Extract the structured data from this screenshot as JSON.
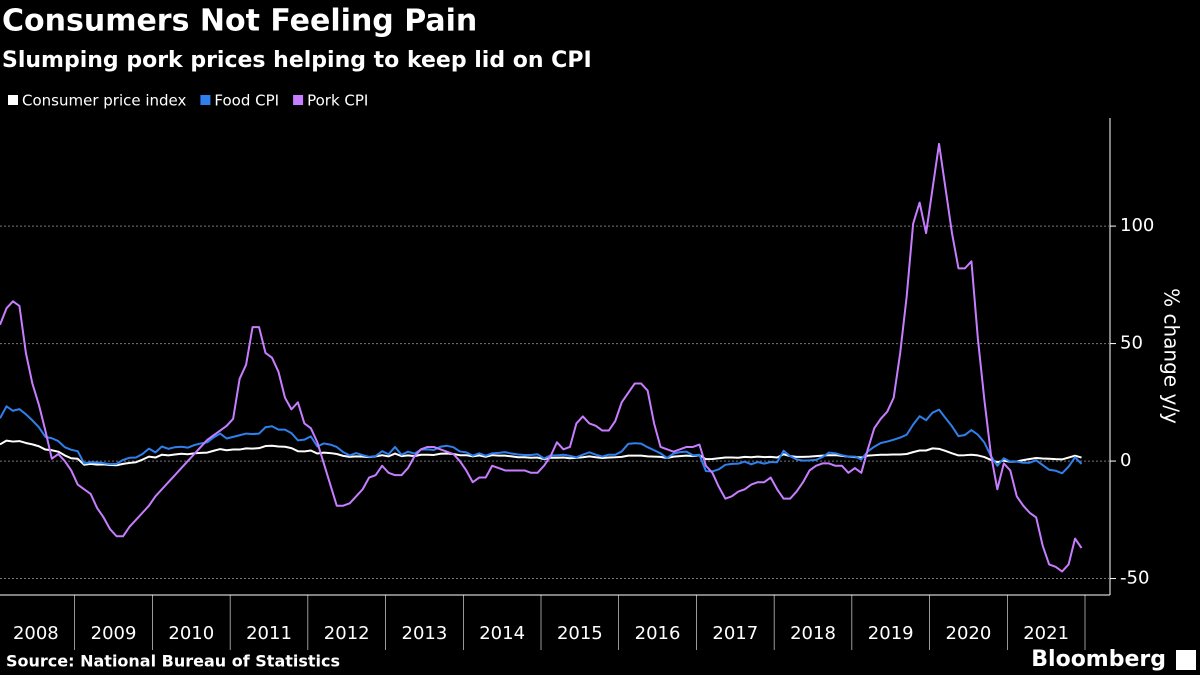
{
  "chart_data": {
    "type": "line",
    "title": "Consumers Not Feeling Pain",
    "subtitle": "Slumping pork prices helping to keep lid on CPI",
    "y_label": "% change y/y",
    "source": "Source: National Bureau of Statistics",
    "brand": "Bloomberg",
    "categories": [
      "2008",
      null,
      null,
      null,
      null,
      null,
      null,
      null,
      null,
      null,
      null,
      null,
      "2009",
      null,
      null,
      null,
      null,
      null,
      null,
      null,
      null,
      null,
      null,
      null,
      "2010",
      null,
      null,
      null,
      null,
      null,
      null,
      null,
      null,
      null,
      null,
      null,
      "2011",
      null,
      null,
      null,
      null,
      null,
      null,
      null,
      null,
      null,
      null,
      null,
      "2012",
      null,
      null,
      null,
      null,
      null,
      null,
      null,
      null,
      null,
      null,
      null,
      "2013",
      null,
      null,
      null,
      null,
      null,
      null,
      null,
      null,
      null,
      null,
      null,
      "2014",
      null,
      null,
      null,
      null,
      null,
      null,
      null,
      null,
      null,
      null,
      null,
      "2015",
      null,
      null,
      null,
      null,
      null,
      null,
      null,
      null,
      null,
      null,
      null,
      "2016",
      null,
      null,
      null,
      null,
      null,
      null,
      null,
      null,
      null,
      null,
      null,
      "2017",
      null,
      null,
      null,
      null,
      null,
      null,
      null,
      null,
      null,
      null,
      null,
      "2018",
      null,
      null,
      null,
      null,
      null,
      null,
      null,
      null,
      null,
      null,
      null,
      "2019",
      null,
      null,
      null,
      null,
      null,
      null,
      null,
      null,
      null,
      null,
      null,
      "2020",
      null,
      null,
      null,
      null,
      null,
      null,
      null,
      null,
      null,
      null,
      null,
      "2021",
      null,
      null,
      null,
      null,
      null,
      null,
      null,
      null,
      null,
      null,
      null
    ],
    "series": [
      {
        "name": "Consumer price index",
        "color": "#ffffff",
        "values": [
          7.1,
          8.7,
          8.3,
          8.5,
          7.7,
          7.1,
          6.3,
          4.9,
          4.6,
          4.0,
          2.4,
          1.2,
          1.0,
          -1.6,
          -1.2,
          -1.5,
          -1.4,
          -1.7,
          -1.8,
          -1.2,
          -0.8,
          -0.5,
          0.6,
          1.9,
          1.5,
          2.7,
          2.4,
          2.8,
          3.1,
          2.9,
          3.3,
          3.5,
          3.6,
          4.4,
          5.1,
          4.6,
          4.9,
          4.9,
          5.4,
          5.3,
          5.5,
          6.4,
          6.5,
          6.2,
          6.1,
          5.5,
          4.2,
          4.1,
          4.5,
          3.2,
          3.6,
          3.4,
          3.0,
          2.2,
          1.8,
          2.0,
          1.9,
          1.7,
          2.0,
          2.5,
          2.0,
          3.2,
          2.1,
          2.4,
          2.1,
          2.7,
          2.7,
          2.6,
          3.1,
          3.2,
          3.0,
          2.5,
          2.5,
          2.0,
          2.4,
          1.8,
          2.5,
          2.3,
          2.3,
          2.0,
          1.6,
          1.6,
          1.4,
          1.5,
          0.8,
          1.4,
          1.4,
          1.5,
          1.2,
          1.4,
          1.6,
          2.0,
          1.6,
          1.3,
          1.5,
          1.6,
          1.8,
          2.3,
          2.3,
          2.3,
          2.0,
          1.9,
          1.8,
          1.3,
          1.9,
          2.1,
          2.3,
          2.1,
          2.5,
          0.8,
          0.9,
          1.2,
          1.5,
          1.5,
          1.4,
          1.8,
          1.6,
          1.9,
          1.7,
          1.8,
          1.5,
          2.9,
          2.1,
          1.8,
          1.8,
          1.9,
          2.1,
          2.3,
          2.5,
          2.5,
          2.2,
          1.9,
          1.7,
          1.5,
          2.3,
          2.5,
          2.7,
          2.7,
          2.8,
          2.8,
          3.0,
          3.8,
          4.5,
          4.5,
          5.4,
          5.2,
          4.3,
          3.3,
          2.4,
          2.5,
          2.7,
          2.4,
          1.7,
          0.5,
          -0.5,
          0.2,
          -0.3,
          -0.2,
          0.4,
          0.9,
          1.3,
          1.1,
          1.0,
          0.8,
          0.7,
          1.5,
          2.3,
          1.5
        ]
      },
      {
        "name": "Food CPI",
        "color": "#2f80ed",
        "values": [
          18.2,
          23.3,
          21.4,
          22.1,
          19.9,
          17.3,
          14.4,
          10.3,
          9.7,
          8.5,
          5.9,
          4.8,
          4.2,
          -1.0,
          -0.5,
          -0.6,
          -0.9,
          -1.3,
          -1.2,
          0.5,
          1.4,
          1.5,
          3.0,
          5.3,
          3.7,
          6.2,
          5.2,
          5.9,
          6.1,
          5.7,
          6.8,
          7.5,
          8.0,
          10.1,
          11.7,
          9.6,
          10.3,
          11.0,
          11.7,
          11.5,
          11.7,
          14.4,
          14.8,
          13.4,
          13.4,
          11.9,
          8.8,
          9.1,
          10.5,
          6.2,
          7.5,
          7.0,
          6.0,
          3.8,
          2.4,
          3.4,
          2.5,
          1.8,
          2.1,
          4.2,
          2.9,
          6.0,
          2.7,
          4.0,
          3.2,
          4.9,
          5.0,
          4.7,
          6.1,
          6.5,
          5.9,
          4.1,
          3.7,
          2.3,
          3.3,
          2.3,
          3.3,
          3.5,
          3.8,
          3.2,
          2.8,
          2.6,
          2.6,
          2.9,
          1.1,
          2.4,
          2.4,
          2.7,
          2.2,
          1.6,
          2.7,
          3.7,
          2.7,
          1.9,
          2.7,
          2.7,
          4.1,
          7.3,
          7.6,
          7.4,
          5.9,
          4.6,
          3.3,
          1.3,
          3.2,
          3.8,
          4.0,
          2.4,
          2.7,
          -4.3,
          -4.4,
          -3.5,
          -1.6,
          -1.2,
          -1.1,
          -0.2,
          -1.4,
          -0.4,
          -1.1,
          -0.4,
          -0.5,
          4.4,
          2.1,
          0.7,
          0.2,
          0.3,
          0.5,
          1.7,
          3.6,
          3.3,
          2.5,
          1.9,
          1.9,
          0.7,
          4.1,
          6.1,
          7.7,
          8.3,
          9.1,
          10.0,
          11.2,
          15.5,
          19.1,
          17.4,
          20.6,
          21.9,
          18.3,
          14.8,
          10.6,
          11.1,
          13.2,
          11.2,
          7.9,
          2.2,
          -2.0,
          1.2,
          -0.3,
          -0.2,
          -0.7,
          -0.7,
          0.3,
          -1.7,
          -3.7,
          -4.1,
          -5.2,
          -2.4,
          1.6,
          -1.2
        ]
      },
      {
        "name": "Pork CPI",
        "color": "#c77dff",
        "values": [
          58,
          65,
          68,
          66,
          46,
          33,
          24,
          13,
          1,
          3,
          0,
          -4,
          -10,
          -12,
          -14,
          -20,
          -24,
          -29,
          -32,
          -32,
          -28,
          -25,
          -22,
          -19,
          -15,
          -12,
          -9,
          -6,
          -3,
          0,
          3,
          6,
          9,
          11,
          13,
          15,
          18,
          35,
          41,
          57,
          57,
          46,
          44,
          38,
          27,
          22,
          25,
          16,
          14,
          8,
          -1,
          -10,
          -19,
          -19,
          -18,
          -15,
          -12,
          -7,
          -6,
          -2,
          -5,
          -6,
          -6,
          -3,
          2,
          5,
          6,
          6,
          5,
          4,
          3,
          0,
          -4,
          -9,
          -7,
          -7,
          -2,
          -3,
          -4,
          -4,
          -4,
          -4,
          -5,
          -5,
          -2,
          2,
          8,
          5,
          6,
          16,
          19,
          16,
          15,
          13,
          13,
          17,
          25,
          29,
          33,
          33,
          30,
          16,
          6,
          5,
          4,
          5,
          6,
          6,
          7,
          -2,
          -5,
          -11,
          -16,
          -15,
          -13,
          -12,
          -10,
          -9,
          -9,
          -7,
          -12,
          -16,
          -16,
          -13,
          -9,
          -4,
          -2,
          -1,
          -1,
          -2,
          -2,
          -5,
          -3,
          -5,
          5,
          14,
          18,
          21,
          27,
          46,
          70,
          101,
          110,
          97,
          116,
          135,
          116,
          97,
          82,
          82,
          85,
          52,
          26,
          3,
          -12,
          -1,
          -4,
          -15,
          -19,
          -22,
          -24,
          -36,
          -44,
          -45,
          -47,
          -44,
          -33,
          -37
        ]
      }
    ],
    "ylim": [
      -57,
      146
    ],
    "yticks": [
      -50,
      0,
      50,
      100
    ],
    "grid": true,
    "legend": "top-left"
  }
}
